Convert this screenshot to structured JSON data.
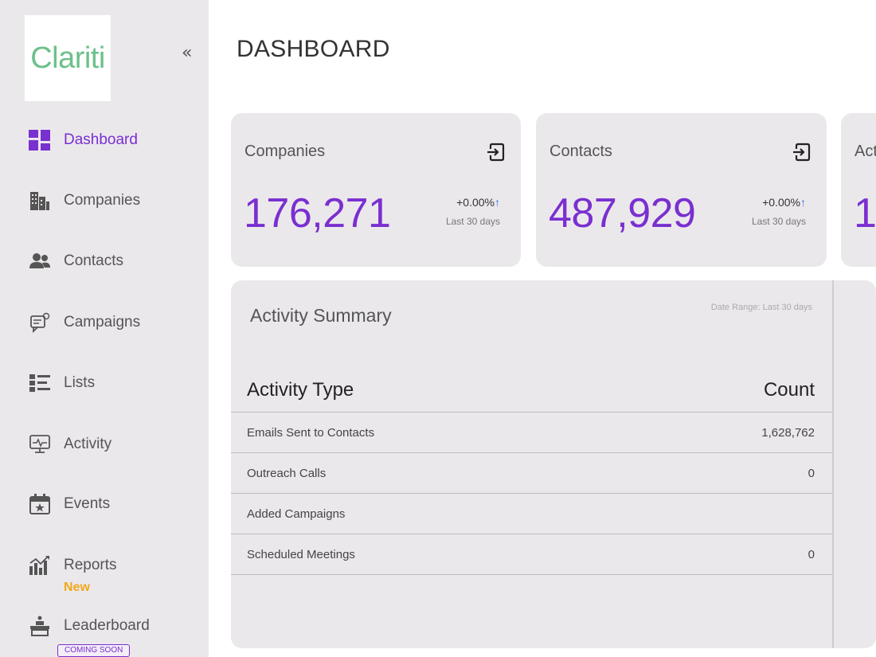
{
  "brand": {
    "logo_text": "Clariti"
  },
  "sidebar": {
    "collapse_icon": "double-chevron-left-icon",
    "items": [
      {
        "label": "Dashboard",
        "icon": "dashboard-icon",
        "active": true
      },
      {
        "label": "Companies",
        "icon": "building-icon"
      },
      {
        "label": "Contacts",
        "icon": "users-icon"
      },
      {
        "label": "Campaigns",
        "icon": "campaign-icon"
      },
      {
        "label": "Lists",
        "icon": "list-icon"
      },
      {
        "label": "Activity",
        "icon": "activity-monitor-icon"
      },
      {
        "label": "Events",
        "icon": "calendar-star-icon"
      },
      {
        "label": "Reports",
        "icon": "bar-chart-icon",
        "badge": "New"
      },
      {
        "label": "Leaderboard",
        "icon": "podium-icon",
        "badge": "COMING SOON"
      }
    ]
  },
  "page": {
    "title": "DASHBOARD"
  },
  "stats": [
    {
      "title": "Companies",
      "value": "176,271",
      "change": "+0.00%",
      "period": "Last 30 days"
    },
    {
      "title": "Contacts",
      "value": "487,929",
      "change": "+0.00%",
      "period": "Last 30 days"
    },
    {
      "title": "Act",
      "value": "1"
    }
  ],
  "activity": {
    "title": "Activity Summary",
    "date_range": "Date Range: Last 30 days",
    "headers": [
      "Activity Type",
      "Count"
    ],
    "rows": [
      {
        "type": "Emails Sent to Contacts",
        "count": "1,628,762"
      },
      {
        "type": "Outreach Calls",
        "count": "0"
      },
      {
        "type": "Added Campaigns",
        "count": ""
      },
      {
        "type": "Scheduled Meetings",
        "count": "0"
      }
    ]
  },
  "colors": {
    "accent": "#7a2fd0",
    "logo": "#6dc08a",
    "badge_new": "#f0a818",
    "arrow_up": "#3b6fe0"
  }
}
